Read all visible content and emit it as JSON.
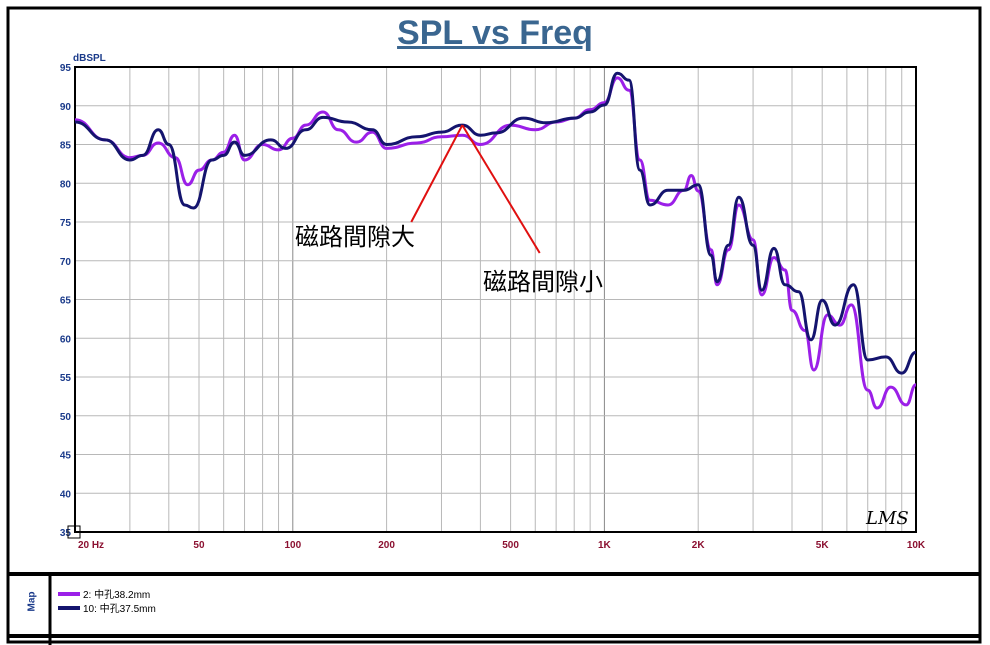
{
  "chart_data": {
    "type": "line",
    "title": "SPL vs Freq",
    "ylabel": "dBSPL",
    "xlabel": "Hz",
    "xscale": "log",
    "xlim": [
      20,
      10000
    ],
    "ylim": [
      35,
      95
    ],
    "yticks": [
      35,
      40,
      45,
      50,
      55,
      60,
      65,
      70,
      75,
      80,
      85,
      90,
      95
    ],
    "xticks": [
      {
        "v": 20,
        "label": "20 Hz"
      },
      {
        "v": 50,
        "label": "50"
      },
      {
        "v": 100,
        "label": "100"
      },
      {
        "v": 200,
        "label": "200"
      },
      {
        "v": 500,
        "label": "500"
      },
      {
        "v": 1000,
        "label": "1K"
      },
      {
        "v": 2000,
        "label": "2K"
      },
      {
        "v": 5000,
        "label": "5K"
      },
      {
        "v": 10000,
        "label": "10K"
      }
    ],
    "grid": true,
    "legend_position": "bottom-left",
    "series": [
      {
        "name": "2: 中孔38.2mm",
        "color": "#9b1fe8",
        "x": [
          20,
          25,
          30,
          33,
          37,
          42,
          46,
          50,
          55,
          60,
          65,
          70,
          80,
          90,
          100,
          110,
          125,
          140,
          160,
          180,
          200,
          250,
          300,
          350,
          400,
          500,
          600,
          700,
          800,
          900,
          1000,
          1100,
          1200,
          1300,
          1400,
          1600,
          1800,
          1900,
          2000,
          2200,
          2300,
          2500,
          2700,
          3000,
          3200,
          3500,
          3800,
          4000,
          4400,
          4700,
          5200,
          5700,
          6200,
          7000,
          7500,
          8300,
          9300,
          10000
        ],
        "y": [
          88.2,
          85.6,
          83.3,
          83.6,
          85.2,
          83.3,
          79.8,
          81.7,
          83,
          84,
          86.2,
          83,
          85,
          84.3,
          85.8,
          87.5,
          89.2,
          86.9,
          85.3,
          86.6,
          84.5,
          85.2,
          86,
          86.2,
          85,
          87.5,
          86.9,
          87.9,
          88.4,
          89.5,
          90.4,
          93.6,
          92,
          83,
          77.8,
          77.2,
          79.1,
          81,
          79,
          71.4,
          66.9,
          71.4,
          77.2,
          72.7,
          65.6,
          70.4,
          68.8,
          63.6,
          61,
          55.9,
          63,
          61.7,
          64.3,
          53.3,
          51,
          53.7,
          51.4,
          54
        ]
      },
      {
        "name": "10: 中孔37.5mm",
        "color": "#14146e",
        "x": [
          20,
          25,
          30,
          33,
          37,
          40,
          45,
          48,
          55,
          60,
          65,
          70,
          85,
          95,
          110,
          125,
          150,
          180,
          200,
          250,
          300,
          350,
          400,
          450,
          550,
          650,
          800,
          900,
          1000,
          1100,
          1200,
          1300,
          1400,
          1600,
          1800,
          2000,
          2200,
          2300,
          2500,
          2700,
          3000,
          3200,
          3500,
          3800,
          4200,
          4600,
          5000,
          5500,
          6300,
          7000,
          8000,
          9000,
          10000
        ],
        "y": [
          87.9,
          85.6,
          83,
          83.6,
          86.9,
          85,
          77.2,
          76.8,
          83,
          83.6,
          85.3,
          83.6,
          85.6,
          84.5,
          86.9,
          88.5,
          87.9,
          86.9,
          85,
          86,
          86.6,
          87.5,
          86.2,
          86.5,
          88.4,
          87.8,
          88.4,
          89.2,
          90.1,
          94.2,
          93.3,
          81.7,
          77.2,
          79.1,
          79.1,
          79.8,
          70.7,
          67.3,
          72,
          78.2,
          72,
          66.2,
          71.6,
          66.9,
          66,
          59.8,
          64.9,
          61.7,
          66.9,
          57.2,
          57.6,
          55.5,
          58.2
        ]
      }
    ],
    "annotations": [
      {
        "text": "磁路間隙大",
        "from": [
          350,
          87.5
        ],
        "to": [
          240,
          75
        ]
      },
      {
        "text": "磁路間隙小",
        "from": [
          350,
          87.5
        ],
        "to": [
          620,
          71
        ]
      }
    ],
    "signature": "LMS"
  },
  "legend": {
    "label": "Map"
  }
}
